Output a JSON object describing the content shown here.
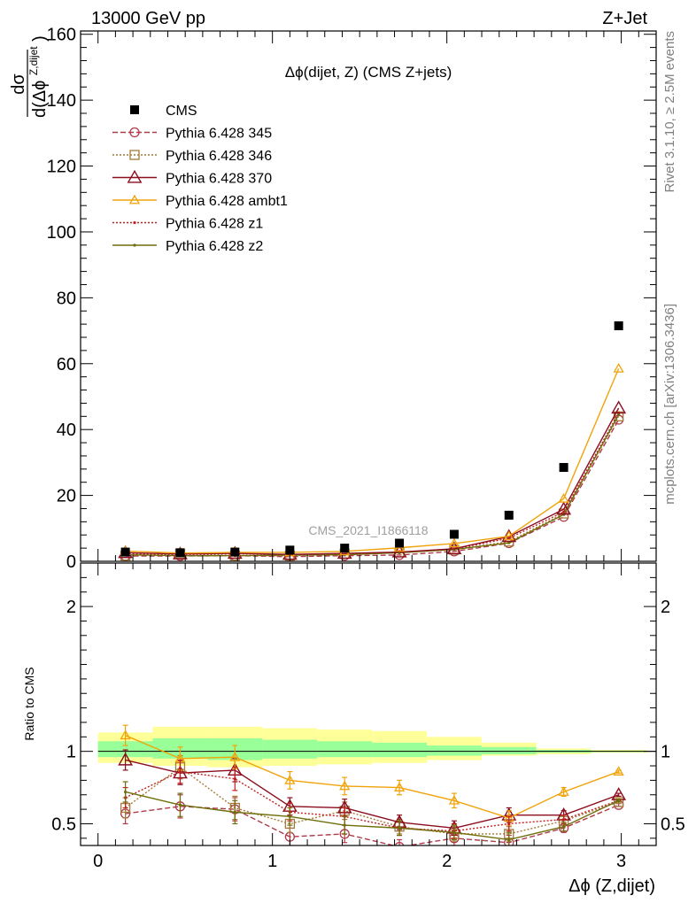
{
  "header": {
    "left": "13000 GeV pp",
    "right": "Z+Jet",
    "plot_title": "Δϕ(dijet, Z) (CMS Z+jets)",
    "watermark": "CMS_2021_I1866118",
    "side_top": "Rivet 3.1.10, ≥ 2.5M events",
    "side_bottom": "mcplots.cern.ch [arXiv:1306.3436]"
  },
  "chart_data": [
    {
      "type": "scatter",
      "title": "Δϕ(dijet, Z) (CMS Z+jets)",
      "ylabel": "dσ/d(Δϕ^{Z,dijet})",
      "ylabel_num": "dσ",
      "ylabel_den": "d(Δϕ",
      "ylabel_sup": "Z,dijet",
      "ylabel_close": ")",
      "xlim": [
        -0.1,
        3.2
      ],
      "ylim": [
        0,
        161
      ],
      "yticks": [
        "0",
        "20",
        "40",
        "60",
        "80",
        "100",
        "120",
        "140",
        "160"
      ],
      "legend_position": "top-left",
      "x": [
        0.157,
        0.471,
        0.785,
        1.1,
        1.414,
        1.728,
        2.042,
        2.356,
        2.67,
        2.985
      ],
      "series": [
        {
          "name": "CMS",
          "color": "#000000",
          "marker": "square-filled",
          "line": "none",
          "values": [
            2.8,
            2.6,
            2.8,
            3.4,
            4.0,
            5.5,
            8.2,
            14.0,
            28.5,
            71.5
          ]
        },
        {
          "name": "Pythia 6.428 345",
          "color": "#b03a4a",
          "marker": "circle-open",
          "line": "dashed",
          "values": [
            1.6,
            1.6,
            1.7,
            1.4,
            1.7,
            1.9,
            3.0,
            5.5,
            13.5,
            43.0
          ]
        },
        {
          "name": "Pythia 6.428 346",
          "color": "#a57a3a",
          "marker": "square-open",
          "line": "dotted",
          "values": [
            1.7,
            2.3,
            1.7,
            1.7,
            2.3,
            2.7,
            3.5,
            6.0,
            14.5,
            44.0
          ]
        },
        {
          "name": "Pythia 6.428 370",
          "color": "#8b0d1e",
          "marker": "triangle-open",
          "line": "solid",
          "values": [
            2.6,
            2.2,
            2.4,
            2.1,
            2.4,
            2.8,
            3.8,
            7.5,
            15.8,
            46.5
          ]
        },
        {
          "name": "Pythia 6.428 ambt1",
          "color": "#f0a30a",
          "marker": "triangle-open-small",
          "line": "solid",
          "values": [
            3.1,
            2.5,
            2.7,
            2.7,
            3.0,
            4.1,
            5.4,
            7.6,
            19.0,
            58.5
          ]
        },
        {
          "name": "Pythia 6.428 z1",
          "color": "#c02020",
          "marker": "dot",
          "line": "dotted",
          "values": [
            2.2,
            2.1,
            2.3,
            2.0,
            2.2,
            2.6,
            3.7,
            7.0,
            15.0,
            45.0
          ]
        },
        {
          "name": "Pythia 6.428 z2",
          "color": "#6e6e0a",
          "marker": "dot",
          "line": "solid",
          "values": [
            2.0,
            1.7,
            1.7,
            1.9,
            1.97,
            2.6,
            3.6,
            5.6,
            14.2,
            44.5
          ]
        }
      ]
    },
    {
      "type": "scatter",
      "xlabel": "Δϕ (Z,dijet)",
      "ylabel": "Ratio to CMS",
      "xlim": [
        -0.1,
        3.2
      ],
      "ylim": [
        0.35,
        2.3
      ],
      "yticks": [
        "0.5",
        "1",
        "2"
      ],
      "xticks": [
        "0",
        "1",
        "2",
        "3"
      ],
      "band_edges": [
        0.0,
        0.314,
        0.628,
        0.942,
        1.257,
        1.571,
        1.885,
        2.199,
        2.513,
        2.827,
        3.142
      ],
      "band_yellow": [
        [
          0.92,
          1.13
        ],
        [
          0.9,
          1.17
        ],
        [
          0.89,
          1.17
        ],
        [
          0.9,
          1.16
        ],
        [
          0.91,
          1.15
        ],
        [
          0.92,
          1.14
        ],
        [
          0.94,
          1.1
        ],
        [
          0.97,
          1.06
        ],
        [
          0.98,
          1.02
        ],
        [
          0.99,
          1.01
        ]
      ],
      "band_green": [
        [
          0.96,
          1.07
        ],
        [
          0.95,
          1.09
        ],
        [
          0.94,
          1.09
        ],
        [
          0.95,
          1.08
        ],
        [
          0.96,
          1.07
        ],
        [
          0.96,
          1.06
        ],
        [
          0.97,
          1.04
        ],
        [
          0.98,
          1.03
        ],
        [
          0.99,
          1.01
        ],
        [
          0.995,
          1.005
        ]
      ],
      "x": [
        0.157,
        0.471,
        0.785,
        1.1,
        1.414,
        1.728,
        2.042,
        2.356,
        2.67,
        2.985
      ],
      "series": [
        {
          "name": "Pythia 6.428 345",
          "values": [
            0.57,
            0.62,
            0.6,
            0.41,
            0.43,
            0.34,
            0.4,
            0.37,
            0.47,
            0.63
          ]
        },
        {
          "name": "Pythia 6.428 346",
          "values": [
            0.61,
            0.89,
            0.61,
            0.5,
            0.59,
            0.48,
            0.43,
            0.43,
            0.52,
            0.65
          ]
        },
        {
          "name": "Pythia 6.428 370",
          "values": [
            0.94,
            0.85,
            0.87,
            0.62,
            0.61,
            0.51,
            0.47,
            0.56,
            0.56,
            0.7
          ]
        },
        {
          "name": "Pythia 6.428 ambt1",
          "values": [
            1.11,
            0.95,
            0.96,
            0.8,
            0.76,
            0.75,
            0.66,
            0.54,
            0.72,
            0.86
          ]
        },
        {
          "name": "Pythia 6.428 z1",
          "values": [
            0.68,
            0.86,
            0.81,
            0.58,
            0.55,
            0.47,
            0.45,
            0.5,
            0.53,
            0.66
          ]
        },
        {
          "name": "Pythia 6.428 z2",
          "values": [
            0.72,
            0.63,
            0.58,
            0.55,
            0.49,
            0.47,
            0.44,
            0.39,
            0.48,
            0.66
          ]
        }
      ],
      "errors": [
        0.07,
        0.08,
        0.08,
        0.06,
        0.06,
        0.05,
        0.05,
        0.05,
        0.03,
        0.01
      ]
    }
  ]
}
